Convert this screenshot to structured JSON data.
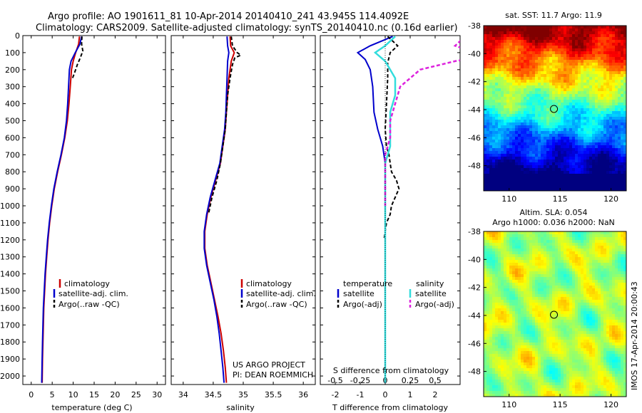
{
  "header": {
    "line1": "Argo profile: AO 1901611_81 10-Apr-2014 20140410_241 43.945S 114.4092E",
    "line2": "Climatology: CARS2009. Satellite-adjusted climatology: synTS_20140410.nc (0.16d earlier)"
  },
  "colors": {
    "climatology": "#cc0000",
    "satellite": "#0000cc",
    "argo": "#000000",
    "sal_satellite": "#33dddd",
    "sal_argo": "#dd22dd"
  },
  "credits": {
    "project": "US ARGO PROJECT",
    "pi": "PI: DEAN ROEMMICH"
  },
  "vertical_label": "IMOS 17-Apr-2014 20:00:43",
  "chart_data": [
    {
      "type": "line",
      "xlabel": "temperature (deg C)",
      "xlim": [
        -2,
        32
      ],
      "xticks": [
        "0",
        "5",
        "10",
        "15",
        "20",
        "25",
        "30"
      ],
      "ylim": [
        0,
        2050
      ],
      "yticks": [
        "0",
        "100",
        "200",
        "300",
        "400",
        "500",
        "600",
        "700",
        "800",
        "900",
        "1000",
        "1100",
        "1200",
        "1300",
        "1400",
        "1500",
        "1600",
        "1700",
        "1800",
        "1900",
        "2000"
      ],
      "legend": [
        "climatology",
        "satellite-adj. clim.",
        "Argo(..raw -QC)"
      ],
      "series": [
        {
          "name": "climatology",
          "x": [
            11.5,
            11.3,
            10.6,
            10,
            9.6,
            9.3,
            9,
            8.6,
            8,
            7.2,
            6.3,
            5.5,
            4.9,
            4.4,
            4.0,
            3.7,
            3.4,
            3.2,
            3.0,
            2.9,
            2.8,
            2.7,
            2.6
          ],
          "y": [
            5,
            50,
            100,
            150,
            200,
            300,
            400,
            500,
            600,
            700,
            800,
            900,
            1000,
            1100,
            1200,
            1300,
            1400,
            1500,
            1600,
            1700,
            1800,
            1900,
            2040
          ]
        },
        {
          "name": "satellite-adj. clim.",
          "x": [
            12,
            11.6,
            10.5,
            9.5,
            9.1,
            8.9,
            8.7,
            8.4,
            7.9,
            7.1,
            6.2,
            5.4,
            4.8,
            4.3,
            3.9,
            3.6,
            3.3,
            3.1,
            2.9,
            2.8,
            2.7,
            2.6,
            2.5
          ],
          "y": [
            5,
            50,
            100,
            150,
            200,
            300,
            400,
            500,
            600,
            700,
            800,
            900,
            1000,
            1100,
            1200,
            1300,
            1400,
            1500,
            1600,
            1700,
            1800,
            1900,
            2040
          ]
        },
        {
          "name": "Argo(..raw -QC)",
          "x": [
            12.1,
            12,
            12.3,
            11.7,
            11,
            10.3,
            9.7
          ],
          "y": [
            5,
            50,
            90,
            130,
            170,
            220,
            260
          ]
        }
      ]
    },
    {
      "type": "line",
      "xlabel": "salinity",
      "xlim": [
        33.8,
        36.2
      ],
      "xticks": [
        "34",
        "34.5",
        "35",
        "35.5",
        "36"
      ],
      "ylim": [
        0,
        2050
      ],
      "legend": [
        "climatology",
        "satellite-adj. clim.",
        "Argo(..raw -QC)"
      ],
      "series": [
        {
          "name": "climatology",
          "x": [
            34.78,
            34.79,
            34.85,
            34.8,
            34.76,
            34.74,
            34.72,
            34.7,
            34.66,
            34.62,
            34.54,
            34.46,
            34.4,
            34.36,
            34.36,
            34.4,
            34.46,
            34.52,
            34.58,
            34.63,
            34.67,
            34.7,
            34.72
          ],
          "y": [
            5,
            60,
            100,
            150,
            250,
            350,
            450,
            550,
            650,
            750,
            850,
            950,
            1050,
            1150,
            1250,
            1350,
            1450,
            1550,
            1650,
            1750,
            1850,
            1950,
            2040
          ]
        },
        {
          "name": "satellite-adj. clim.",
          "x": [
            34.73,
            34.74,
            34.76,
            34.74,
            34.73,
            34.72,
            34.71,
            34.69,
            34.65,
            34.61,
            34.53,
            34.45,
            34.39,
            34.35,
            34.35,
            34.39,
            34.45,
            34.51,
            34.56,
            34.6,
            34.63,
            34.66,
            34.68
          ],
          "y": [
            5,
            60,
            100,
            150,
            250,
            350,
            450,
            550,
            650,
            750,
            850,
            950,
            1050,
            1150,
            1250,
            1350,
            1450,
            1550,
            1650,
            1750,
            1850,
            1950,
            2040
          ]
        },
        {
          "name": "Argo(..raw -QC)",
          "x": [
            34.8,
            34.82,
            34.9,
            34.96,
            34.86,
            34.82,
            34.78,
            34.74,
            34.72,
            34.7,
            34.66,
            34.62,
            34.56,
            34.48,
            34.42
          ],
          "y": [
            5,
            60,
            100,
            115,
            130,
            170,
            250,
            350,
            450,
            550,
            650,
            750,
            850,
            950,
            1050
          ]
        }
      ]
    },
    {
      "type": "line",
      "xlabel": "T difference from climatology",
      "xlabel2": "S difference from climatology",
      "xlim": [
        -2.6,
        3.0
      ],
      "xticks": [
        "-2",
        "-1",
        "0",
        "1",
        "2"
      ],
      "xticks2": [
        "-0.5",
        "-0.25",
        "0",
        "0.25",
        "0.5"
      ],
      "ylim": [
        0,
        2050
      ],
      "legend_left_title": "temperature",
      "legend_right_title": "salinity",
      "legend_left": [
        "satellite",
        "Argo(-adj)"
      ],
      "legend_right": [
        "satellite",
        "Argo(-adj)"
      ],
      "series": [
        {
          "name": "T satellite",
          "x": [
            0.3,
            -0.6,
            -1.1,
            -0.8,
            -0.6,
            -0.5,
            -0.45,
            -0.3,
            -0.1,
            0,
            0,
            0,
            0,
            0,
            0,
            0,
            0,
            0,
            0,
            0,
            0,
            0
          ],
          "y": [
            5,
            60,
            100,
            140,
            200,
            300,
            450,
            550,
            650,
            750,
            850,
            950,
            1050,
            1150,
            1250,
            1350,
            1450,
            1550,
            1650,
            1750,
            1900,
            2040
          ]
        },
        {
          "name": "T Argo(-adj)",
          "x": [
            0.1,
            0.5,
            0.2,
            0.1,
            0.1,
            0.05,
            0,
            0.05,
            0.15,
            0.2,
            0.25,
            0.45,
            0.55,
            0.4,
            0.25,
            0.2,
            0.05,
            0,
            -0.05
          ],
          "y": [
            5,
            60,
            100,
            160,
            250,
            400,
            550,
            650,
            700,
            750,
            800,
            850,
            900,
            950,
            1000,
            1050,
            1100,
            1150,
            1200
          ]
        },
        {
          "name": "S satellite",
          "x": [
            0.1,
            0,
            -0.1,
            0,
            0.1,
            0.1,
            0.05,
            0.05,
            0.05,
            0,
            0,
            0,
            0,
            0,
            0,
            0,
            0,
            0,
            0,
            0
          ],
          "y": [
            5,
            60,
            100,
            150,
            250,
            350,
            450,
            550,
            650,
            750,
            850,
            950,
            1050,
            1150,
            1250,
            1350,
            1500,
            1700,
            1900,
            2040
          ]
        },
        {
          "name": "S Argo(-adj)",
          "x": [
            0.8,
            0.7,
            0.9,
            1.0,
            0.7,
            0.35,
            0.15,
            0.1,
            0.05,
            0.05,
            0,
            0,
            0,
            0
          ],
          "y": [
            5,
            60,
            100,
            120,
            150,
            200,
            300,
            400,
            500,
            600,
            700,
            800,
            900,
            1000
          ]
        }
      ]
    },
    {
      "type": "heatmap",
      "title": "sat. SST: 11.7 Argo: 11.9",
      "xlim": [
        107.5,
        121.5
      ],
      "ylim": [
        -49.8,
        -38
      ],
      "xticks": [
        "110",
        "115",
        "120"
      ],
      "yticks": [
        "-38",
        "-40",
        "-42",
        "-44",
        "-46",
        "-48"
      ],
      "marker": [
        114.4,
        -43.95
      ]
    },
    {
      "type": "heatmap",
      "title": "Altim. SLA: 0.054",
      "subtitle": "Argo h1000: 0.036 h2000: NaN",
      "xlim": [
        107.5,
        121.5
      ],
      "ylim": [
        -49.8,
        -38
      ],
      "xticks": [
        "110",
        "115",
        "120"
      ],
      "yticks": [
        "-38",
        "-40",
        "-42",
        "-44",
        "-46",
        "-48"
      ],
      "marker": [
        114.4,
        -43.95
      ]
    }
  ]
}
